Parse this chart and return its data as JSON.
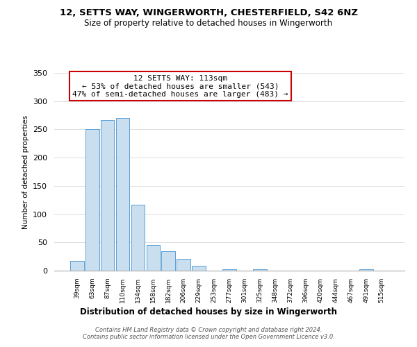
{
  "title": "12, SETTS WAY, WINGERWORTH, CHESTERFIELD, S42 6NZ",
  "subtitle": "Size of property relative to detached houses in Wingerworth",
  "xlabel": "Distribution of detached houses by size in Wingerworth",
  "ylabel": "Number of detached properties",
  "bar_labels": [
    "39sqm",
    "63sqm",
    "87sqm",
    "110sqm",
    "134sqm",
    "158sqm",
    "182sqm",
    "206sqm",
    "229sqm",
    "253sqm",
    "277sqm",
    "301sqm",
    "325sqm",
    "348sqm",
    "372sqm",
    "396sqm",
    "420sqm",
    "444sqm",
    "467sqm",
    "491sqm",
    "515sqm"
  ],
  "bar_values": [
    17,
    250,
    266,
    270,
    117,
    45,
    35,
    21,
    9,
    0,
    2,
    0,
    2,
    0,
    0,
    0,
    0,
    0,
    0,
    2,
    0
  ],
  "bar_color": "#c9dff0",
  "bar_edge_color": "#5a9fd4",
  "ylim": [
    0,
    350
  ],
  "yticks": [
    0,
    50,
    100,
    150,
    200,
    250,
    300,
    350
  ],
  "annotation_line1": "12 SETTS WAY: 113sqm",
  "annotation_line2": "← 53% of detached houses are smaller (543)",
  "annotation_line3": "47% of semi-detached houses are larger (483) →",
  "annotation_box_color": "#ffffff",
  "annotation_box_edge_color": "#cc0000",
  "footer_text": "Contains HM Land Registry data © Crown copyright and database right 2024.\nContains public sector information licensed under the Open Government Licence v3.0.",
  "background_color": "#ffffff",
  "grid_color": "#dddddd"
}
